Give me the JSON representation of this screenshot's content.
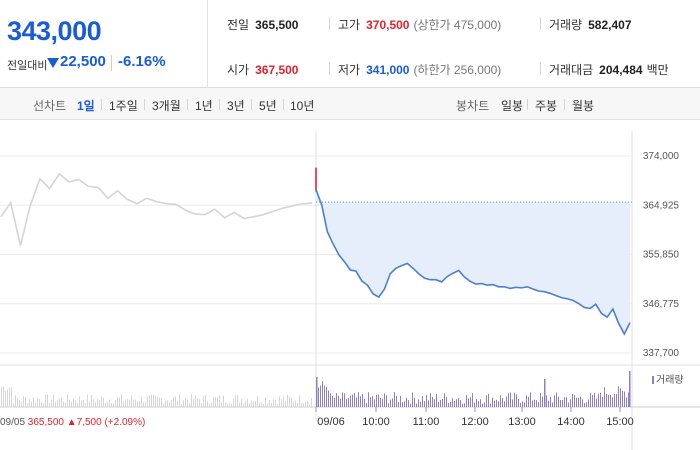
{
  "header": {
    "current_price": "343,000",
    "prev_label": "전일대비",
    "change_amount": "22,500",
    "change_rate": "-6.16%",
    "stats": {
      "prev_close_label": "전일",
      "prev_close": "365,500",
      "high_label": "고가",
      "high": "370,500",
      "upper_limit": "(상한가 475,000)",
      "volume_label": "거래량",
      "volume": "582,407",
      "open_label": "시가",
      "open": "367,500",
      "low_label": "저가",
      "low": "341,000",
      "lower_limit": "(하한가 256,000)",
      "trade_value_label": "거래대금",
      "trade_value": "204,484",
      "trade_value_unit": "백만"
    }
  },
  "tabs": {
    "line_chart_label": "선차트",
    "line_items": [
      "1일",
      "1주일",
      "3개월",
      "1년",
      "3년",
      "5년",
      "10년"
    ],
    "active_index": 0,
    "candle_chart_label": "봉차트",
    "candle_items": [
      "일봉",
      "주봉",
      "월봉"
    ]
  },
  "colors": {
    "accent_blue": "#1a5bd6",
    "rise_red": "#e0222e",
    "prev_day_line": "#d4d4d4",
    "today_line": "#4a7fd4",
    "fill": "#e6eefb",
    "volume_today": "#8f7fc6",
    "volume_prev": "#d6d6d6"
  },
  "chart_data": {
    "type": "line",
    "y_ticks": [
      "374,000",
      "364,925",
      "355,850",
      "346,775",
      "337,700"
    ],
    "ylim": [
      337700,
      374000
    ],
    "prev_close_value": 365500,
    "x_ticks": [
      "09/06",
      "10:00",
      "11:00",
      "12:00",
      "13:00",
      "14:00",
      "15:00"
    ],
    "prev_day_date": "09/05",
    "prev_day_close": "365,500",
    "prev_day_change": "7,500",
    "prev_day_rate": "(+2.09%)",
    "volume_label": "거래량",
    "series": [
      {
        "name": "09/05",
        "values": [
          362800,
          365400,
          357500,
          364800,
          369800,
          368000,
          370700,
          369200,
          369700,
          368400,
          368200,
          366200,
          367600,
          366000,
          365200,
          366200,
          365600,
          365200,
          365100,
          364000,
          363300,
          363200,
          364200,
          362600,
          363600,
          362500,
          362800,
          363200,
          363800,
          364400,
          364800,
          365200,
          365300
        ]
      },
      {
        "name": "09/06",
        "values": [
          367800,
          365000,
          360000,
          357800,
          355800,
          354500,
          353000,
          352800,
          351000,
          350200,
          348600,
          348000,
          349500,
          352300,
          353300,
          353800,
          354200,
          353300,
          352300,
          351500,
          351200,
          351200,
          350800,
          351800,
          352400,
          352900,
          351700,
          350900,
          350400,
          350500,
          350200,
          350300,
          349900,
          349900,
          349600,
          349800,
          349700,
          349900,
          349500,
          349100,
          349000,
          348700,
          348300,
          347900,
          347700,
          347400,
          346800,
          346100,
          345900,
          346700,
          345000,
          344300,
          345800,
          343200,
          341200,
          343300
        ]
      }
    ]
  }
}
